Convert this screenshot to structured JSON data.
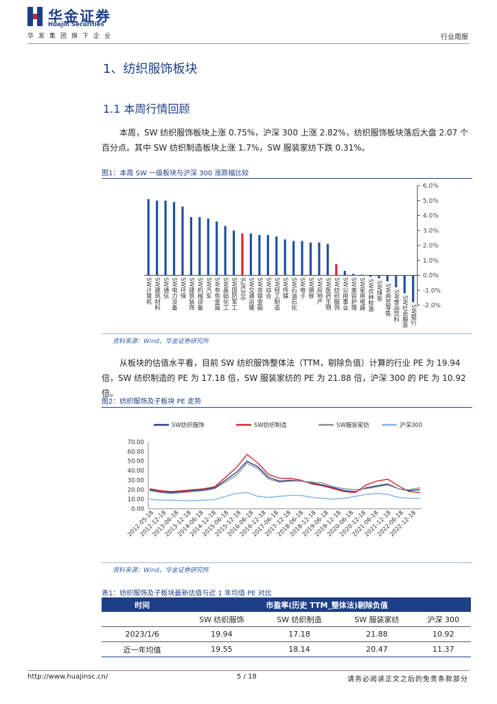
{
  "header": {
    "brand_cn": "华金证券",
    "brand_en": "Huajin Securities",
    "group_line": "华发集团旗下企业",
    "report_type": "行业周报"
  },
  "section_title": "1、纺织服饰板块",
  "subsection_title": "1.1 本周行情回顾",
  "paragraph1": "本周，SW 纺织服饰板块上涨 0.75%，沪深 300 上涨 2.82%，纺织服饰板块落后大盘 2.07 个百分点。其中 SW 纺织制造板块上涨 1.7%，SW 服装家纺下跌 0.31%。",
  "figure1_title": "图1：本周 SW 一级板块与沪深 300 涨跌幅比较",
  "figure1_source": "资料来源：Wind，华金证券研究所",
  "paragraph2": "从板块的估值水平看，目前 SW 纺织服饰整体法（TTM，剔除负值）计算的行业 PE 为 19.94 倍，SW 纺织制造的 PE 为 17.18 倍，SW 服装家纺的 PE 为 21.88 倍，沪深 300 的 PE 为 10.92 倍。",
  "figure2_title": "图2：纺织服饰及子板块 PE 走势",
  "figure2_source": "资料来源：Wind，华金证券研究所",
  "table1_title": "表1：纺织服饰及子板块最新估值与近 1 年均值 PE 对比",
  "table1": {
    "col_time": "时间",
    "col_group": "市盈率(历史 TTM_整体法)剔除负值",
    "sub_headers": [
      "SW 纺织服饰",
      "SW 纺织制造",
      "SW 服装家纺",
      "沪深 300"
    ],
    "rows": [
      {
        "label": "2023/1/6",
        "values": [
          "19.94",
          "17.18",
          "21.88",
          "10.92"
        ]
      },
      {
        "label": "近一年均值",
        "values": [
          "19.55",
          "18.14",
          "20.47",
          "11.37"
        ]
      }
    ]
  },
  "footer": {
    "url": "http://www.huajinsc.cn/",
    "page": "5 / 18",
    "disclaimer": "请务必阅读正文之后的免责条款部分"
  },
  "colors": {
    "brand_blue": "#1d3f87",
    "bar_blue": "#1f4ea1",
    "bar_red": "#d8232a"
  },
  "chart_data": [
    {
      "type": "bar",
      "categories": [
        "SW计算机",
        "SW建筑材料",
        "SW通信",
        "SW电力设备",
        "SW环保",
        "SW建筑装饰",
        "SW机械设备",
        "SW汽车",
        "SW有色金属",
        "SW基础化工",
        "SW国防军工",
        "沪深300",
        "SW交通运输",
        "SW非银金融",
        "SW综合",
        "SW轻工制造",
        "SW传媒",
        "SW石油石化",
        "SW电子",
        "SW钢铁",
        "SW房地产",
        "SW医药生物",
        "SW纺织服饰",
        "SW公用事业",
        "SW美容护理",
        "SW家用电器",
        "SW农林牧渔",
        "SW煤炭",
        "SW商贸零售",
        "SW食品饮料",
        "SW社会服务",
        "SW银行"
      ],
      "values": [
        5.1,
        5.0,
        5.0,
        4.9,
        4.6,
        3.9,
        3.9,
        3.8,
        3.6,
        3.3,
        3.0,
        2.8,
        2.8,
        2.7,
        2.7,
        2.6,
        2.4,
        2.3,
        2.3,
        2.2,
        2.2,
        2.1,
        0.75,
        0.3,
        0.1,
        0.05,
        -0.1,
        -0.2,
        -0.4,
        -0.8,
        -1.2,
        -1.8
      ],
      "highlight": [
        "沪深300",
        "SW纺织服饰"
      ],
      "ylim": [
        -2.0,
        6.0
      ],
      "yticks": [
        "6.0%",
        "5.0%",
        "4.0%",
        "3.0%",
        "2.0%",
        "1.0%",
        "0.0%",
        "-1.0%",
        "-2.0%"
      ],
      "grid": false
    },
    {
      "type": "line",
      "legend_position": "top",
      "series": [
        {
          "name": "SW纺织服饰",
          "color": "#1f3f8a",
          "values": [
            20,
            18,
            17,
            18,
            19,
            20,
            22,
            30,
            38,
            50,
            44,
            33,
            29,
            30,
            29,
            27,
            25,
            22,
            19,
            18,
            22,
            24,
            26,
            21,
            19,
            20
          ]
        },
        {
          "name": "SW纺织制造",
          "color": "#d8232a",
          "values": [
            21,
            19,
            18,
            19,
            20,
            21,
            23,
            33,
            43,
            57,
            48,
            36,
            32,
            32,
            30,
            26,
            24,
            21,
            18,
            17,
            25,
            29,
            31,
            24,
            18,
            17
          ]
        },
        {
          "name": "SW服装家纺",
          "color": "#8c8c8c",
          "values": [
            19,
            17,
            16,
            17,
            18,
            19,
            21,
            28,
            35,
            48,
            42,
            31,
            28,
            29,
            29,
            28,
            27,
            23,
            21,
            20,
            21,
            23,
            25,
            21,
            20,
            22
          ]
        },
        {
          "name": "沪深300",
          "color": "#7fb1e6",
          "values": [
            10,
            9,
            9,
            8.5,
            8.5,
            9,
            9.5,
            13,
            16,
            17,
            13,
            12,
            13,
            14,
            14,
            12,
            11,
            10,
            11,
            13,
            15,
            16,
            15,
            12,
            11,
            11
          ]
        }
      ],
      "x_tick_labels": [
        "2012-05-18",
        "2012-12-18",
        "2013-06-18",
        "2013-12-18",
        "2014-06-18",
        "2014-12-18",
        "2015-06-18",
        "2015-12-18",
        "2016-06-18",
        "2016-12-18",
        "2017-06-18",
        "2017-12-18",
        "2018-06-18",
        "2018-12-18",
        "2019-06-18",
        "2019-12-18",
        "2020-06-18",
        "2020-12-18",
        "2021-06-18",
        "2021-12-18",
        "2022-06-18",
        "2022-12-18"
      ],
      "ylim": [
        0,
        70
      ],
      "yticks": [
        "70.00",
        "60.00",
        "50.00",
        "40.00",
        "30.00",
        "20.00",
        "10.00",
        "0.00"
      ]
    }
  ]
}
